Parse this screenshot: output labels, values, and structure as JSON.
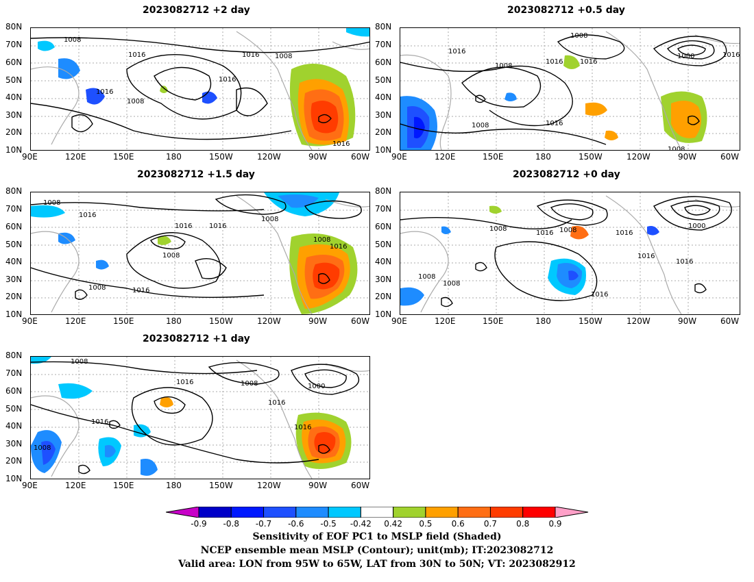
{
  "panels": [
    {
      "title": "2023082712  +2 day",
      "isobars": [
        "1008",
        "1016",
        "1016",
        "1008",
        "1016",
        "1008",
        "1016",
        "1016"
      ]
    },
    {
      "title": "2023082712  +0.5 day",
      "isobars": [
        "1008",
        "1016",
        "1008",
        "1016",
        "1016",
        "1000",
        "1016",
        "1008",
        "1016",
        "1008"
      ]
    },
    {
      "title": "2023082712  +1.5 day",
      "isobars": [
        "1008",
        "1016",
        "1016",
        "1016",
        "1008",
        "1008",
        "1008",
        "1016",
        "1008",
        "1016"
      ]
    },
    {
      "title": "2023082712  +0 day",
      "isobars": [
        "1008",
        "1008",
        "1016",
        "1008",
        "1016",
        "1000",
        "1016",
        "1016",
        "1008",
        "1016"
      ]
    },
    {
      "title": "2023082712  +1 day",
      "isobars": [
        "1008",
        "1016",
        "1008",
        "1016",
        "1000",
        "1016",
        "1016",
        "1008"
      ]
    }
  ],
  "lat_ticks": [
    "80N",
    "70N",
    "60N",
    "50N",
    "40N",
    "30N",
    "20N",
    "10N"
  ],
  "lon_ticks": [
    "90E",
    "120E",
    "150E",
    "180",
    "150W",
    "120W",
    "90W",
    "60W"
  ],
  "colorbar": {
    "labels": [
      "-0.9",
      "-0.8",
      "-0.7",
      "-0.6",
      "-0.5",
      "-0.42",
      "0.42",
      "0.5",
      "0.6",
      "0.7",
      "0.8",
      "0.9"
    ],
    "colors": [
      "#c800c8",
      "#0000c8",
      "#0018ff",
      "#1e50ff",
      "#1e8cff",
      "#00c8ff",
      "#ffffff",
      "#a0d22e",
      "#ffa000",
      "#ff6e14",
      "#ff3c00",
      "#ff0000",
      "#ffa0c8"
    ]
  },
  "caption": {
    "line1": "Sensitivity of EOF PC1 to MSLP field (Shaded)",
    "line2": "NCEP ensemble mean MSLP (Contour); unit(mb); IT:2023082712",
    "line3": "Valid area: LON from 95W to 65W, LAT from 30N to 50N; VT: 2023082912"
  }
}
